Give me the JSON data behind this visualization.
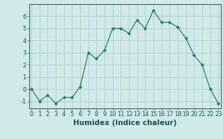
{
  "x": [
    0,
    1,
    2,
    3,
    4,
    5,
    6,
    7,
    8,
    9,
    10,
    11,
    12,
    13,
    14,
    15,
    16,
    17,
    18,
    19,
    20,
    21,
    22,
    23
  ],
  "y": [
    0,
    -1,
    -0.5,
    -1.2,
    -0.7,
    -0.7,
    0.2,
    3.0,
    2.5,
    3.2,
    5.0,
    5.0,
    4.6,
    5.7,
    5.0,
    6.5,
    5.5,
    5.5,
    5.1,
    4.2,
    2.8,
    2.0,
    0.0,
    -1.2
  ],
  "xlabel": "Humidex (Indice chaleur)",
  "ylim": [
    -1.6,
    7.0
  ],
  "xlim": [
    -0.3,
    23.3
  ],
  "yticks": [
    -1,
    0,
    1,
    2,
    3,
    4,
    5,
    6
  ],
  "xticks": [
    0,
    1,
    2,
    3,
    4,
    5,
    6,
    7,
    8,
    9,
    10,
    11,
    12,
    13,
    14,
    15,
    16,
    17,
    18,
    19,
    20,
    21,
    22,
    23
  ],
  "line_color": "#2d7a6a",
  "marker_color": "#2d7a6a",
  "bg_color": "#d0eaea",
  "grid_color": "#aacece",
  "tick_label_fontsize": 6.0,
  "xlabel_fontsize": 7.5
}
